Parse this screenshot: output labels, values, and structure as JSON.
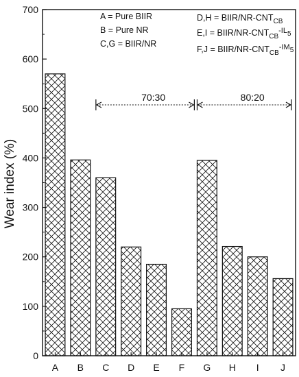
{
  "chart_data": {
    "type": "bar",
    "title": "",
    "xlabel": "",
    "ylabel": "Wear index (%)",
    "categories": [
      "A",
      "B",
      "C",
      "D",
      "E",
      "F",
      "G",
      "H",
      "I",
      "J"
    ],
    "values": [
      570,
      396,
      360,
      220,
      185,
      95,
      395,
      221,
      200,
      156
    ],
    "ylim": [
      0,
      700
    ],
    "yticks": [
      0,
      100,
      200,
      300,
      400,
      500,
      600,
      700
    ],
    "grid": false,
    "bar_fill": "cross-hatch",
    "legend_position": "top",
    "legend_left": [
      {
        "text": "A = Pure BIIR"
      },
      {
        "text": "B = Pure NR"
      },
      {
        "text": "C,G = BIIR/NR"
      }
    ],
    "legend_right": [
      {
        "prefix": "D,H = BIIR/NR-CNT",
        "sub": "CB",
        "tail": "",
        "tail_sub": ""
      },
      {
        "prefix": "E,I  = BIIR/NR-CNT",
        "sub": "CB",
        "tail": "-IL",
        "tail_sub": "5"
      },
      {
        "prefix": "F,J  = BIIR/NR-CNT",
        "sub": "CB",
        "tail": "-IM",
        "tail_sub": "5"
      }
    ],
    "annotations": [
      {
        "label": "70:30",
        "from_category": "C",
        "to_category": "F"
      },
      {
        "label": "80:20",
        "from_category": "G",
        "to_category": "J"
      }
    ]
  }
}
